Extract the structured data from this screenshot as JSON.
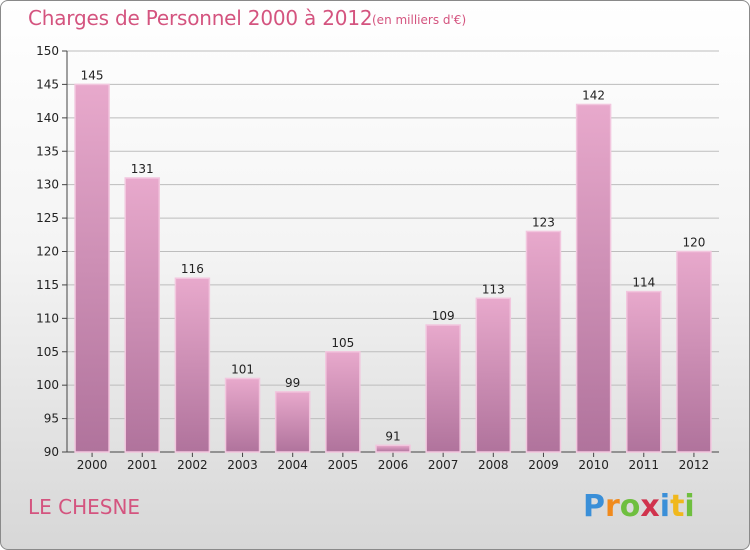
{
  "header": {
    "title": "Charges de Personnel 2000 à 2012",
    "unit_note": "(en milliers d'€)"
  },
  "footer": {
    "commune": "LE CHESNE",
    "logo": {
      "letters": [
        "P",
        "r",
        "o",
        "x",
        "i",
        "t",
        "i"
      ],
      "colors": [
        "#3a8fd8",
        "#f08a1d",
        "#6fbf3f",
        "#d0334d",
        "#3a8fd8",
        "#f0b81d",
        "#6fbf3f"
      ]
    }
  },
  "colors": {
    "bar_light": "#e8a9cc",
    "bar_dark": "#b0739c",
    "text_accent": "#d4547f",
    "grid": "#bdbdbd"
  },
  "chart_data": {
    "type": "bar",
    "categories": [
      "2000",
      "2001",
      "2002",
      "2003",
      "2004",
      "2005",
      "2006",
      "2007",
      "2008",
      "2009",
      "2010",
      "2011",
      "2012"
    ],
    "values": [
      145,
      131,
      116,
      101,
      99,
      105,
      91,
      109,
      113,
      123,
      142,
      114,
      120
    ],
    "yticks": [
      90,
      95,
      100,
      105,
      110,
      115,
      120,
      125,
      130,
      135,
      140,
      145,
      150
    ],
    "ylim": [
      90,
      150
    ],
    "grid": true,
    "legend": "none"
  }
}
